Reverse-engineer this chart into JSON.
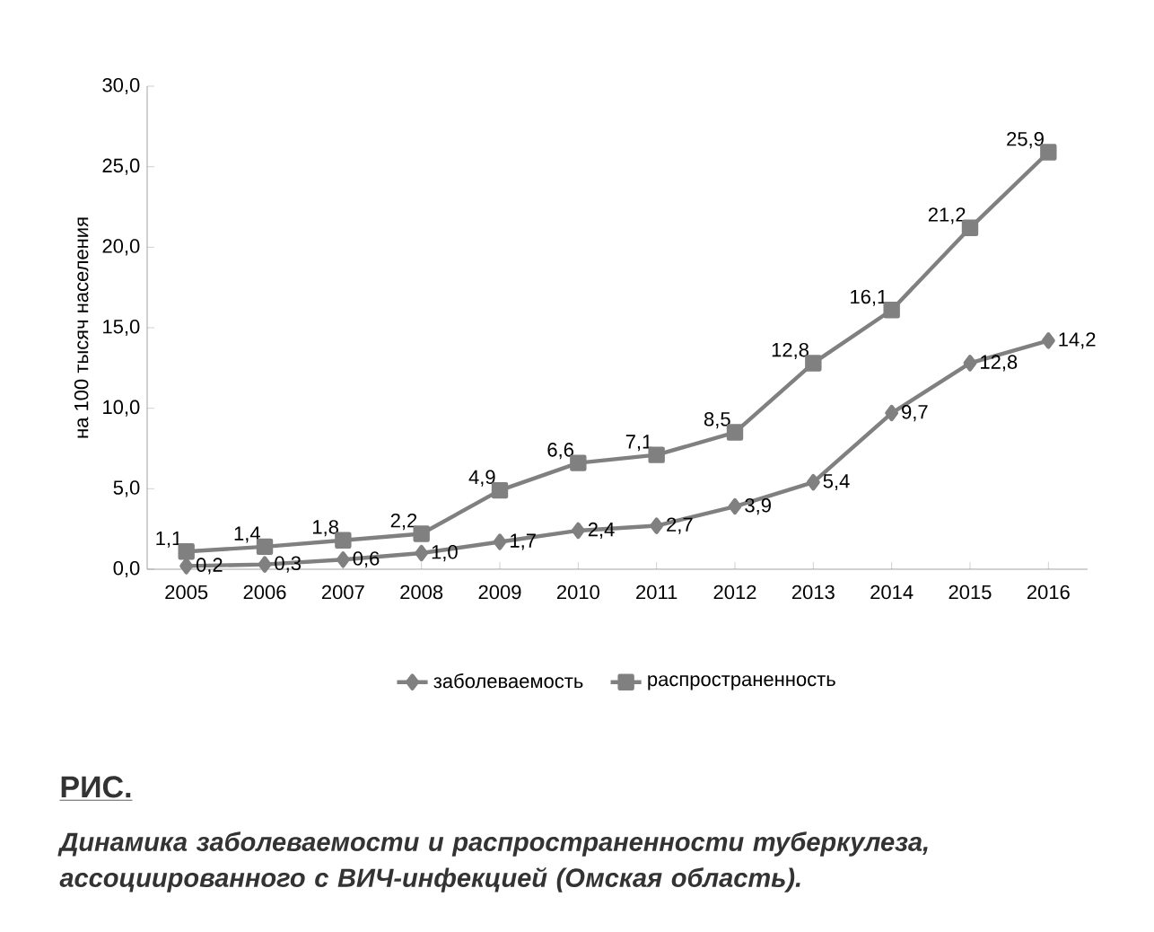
{
  "chart_data": {
    "type": "line",
    "ylabel": "на 100 тысяч населения",
    "categories": [
      "2005",
      "2006",
      "2007",
      "2008",
      "2009",
      "2010",
      "2011",
      "2012",
      "2013",
      "2014",
      "2015",
      "2016"
    ],
    "series": [
      {
        "name": "заболеваемость",
        "color": "#808080",
        "marker": "diamond",
        "values": [
          0.2,
          0.3,
          0.6,
          1.0,
          1.7,
          2.4,
          2.7,
          3.9,
          5.4,
          9.7,
          12.8,
          14.2
        ],
        "value_labels": [
          "0,2",
          "0,3",
          "0,6",
          "1,0",
          "1,7",
          "2,4",
          "2,7",
          "3,9",
          "5,4",
          "9,7",
          "12,8",
          "14,2"
        ]
      },
      {
        "name": "распространенность",
        "color": "#808080",
        "marker": "square",
        "values": [
          1.1,
          1.4,
          1.8,
          2.2,
          4.9,
          6.6,
          7.1,
          8.5,
          12.8,
          16.1,
          21.2,
          25.9
        ],
        "value_labels": [
          "1,1",
          "1,4",
          "1,8",
          "2,2",
          "4,9",
          "6,6",
          "7,1",
          "8,5",
          "12,8",
          "16,1",
          "21,2",
          "25,9"
        ]
      }
    ],
    "ylim": [
      0,
      30
    ],
    "yticks": [
      {
        "value": 0,
        "label": "0,0"
      },
      {
        "value": 5,
        "label": "5,0"
      },
      {
        "value": 10,
        "label": "10,0"
      },
      {
        "value": 15,
        "label": "15,0"
      },
      {
        "value": 20,
        "label": "20,0"
      },
      {
        "value": 25,
        "label": "25,0"
      },
      {
        "value": 30,
        "label": "30,0"
      }
    ],
    "grid": false,
    "legend": "bottom",
    "line_style": "solid",
    "annotations": [
      "РИС.",
      "Динамика заболеваемости и распространенности туберкулеза, ассоциированного с ВИЧ-инфекцией (Омская область)."
    ]
  }
}
